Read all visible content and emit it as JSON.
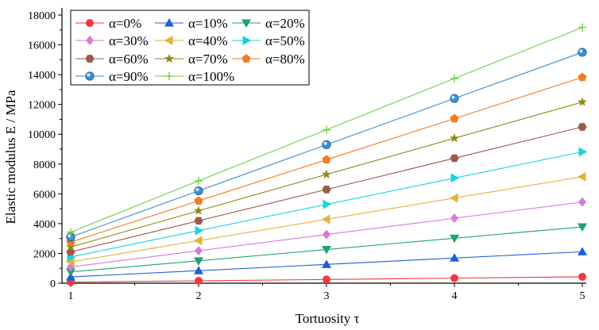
{
  "chart_data": {
    "type": "line",
    "title": "",
    "xlabel": "Tortuosity  τ",
    "ylabel": "Elastic modulus  E / MPa",
    "x": [
      1,
      2,
      3,
      4,
      5
    ],
    "xticks": [
      "1",
      "2",
      "3",
      "4",
      "5"
    ],
    "ylim": [
      0,
      18000
    ],
    "yticks": [
      "0",
      "2000",
      "4000",
      "6000",
      "8000",
      "10000",
      "12000",
      "14000",
      "16000",
      "18000"
    ],
    "grid": false,
    "legend_position": "top-left",
    "series": [
      {
        "name": "α=0%",
        "color": "#f2383c",
        "marker": "circle",
        "values": [
          80,
          160,
          250,
          340,
          430
        ]
      },
      {
        "name": "α=10%",
        "color": "#1f5fd6",
        "marker": "triangle-up",
        "values": [
          420,
          840,
          1260,
          1690,
          2110
        ]
      },
      {
        "name": "α=20%",
        "color": "#1fa36b",
        "marker": "triangle-down",
        "values": [
          760,
          1500,
          2260,
          3020,
          3780
        ]
      },
      {
        "name": "α=30%",
        "color": "#d57ad8",
        "marker": "diamond",
        "values": [
          1090,
          2180,
          3270,
          4360,
          5450
        ]
      },
      {
        "name": "α=40%",
        "color": "#e3b23a",
        "marker": "triangle-left",
        "values": [
          1430,
          2860,
          4290,
          5720,
          7150
        ]
      },
      {
        "name": "α=50%",
        "color": "#16d3e1",
        "marker": "triangle-right",
        "values": [
          1760,
          3530,
          5290,
          7060,
          8820
        ]
      },
      {
        "name": "α=60%",
        "color": "#9a5a4c",
        "marker": "hexagon",
        "values": [
          2100,
          4190,
          6290,
          8390,
          10490
        ]
      },
      {
        "name": "α=70%",
        "color": "#8f8a14",
        "marker": "star",
        "values": [
          2430,
          4860,
          7300,
          9730,
          12160
        ]
      },
      {
        "name": "α=80%",
        "color": "#f47a22",
        "marker": "pentagon",
        "values": [
          2760,
          5530,
          8290,
          11050,
          13820
        ]
      },
      {
        "name": "α=90%",
        "color": "#3d8fd0",
        "marker": "sphere",
        "values": [
          3100,
          6200,
          9300,
          12400,
          15500
        ]
      },
      {
        "name": "α=100%",
        "color": "#6fcf3d",
        "marker": "plus",
        "values": [
          3430,
          6870,
          10300,
          13740,
          17170
        ]
      }
    ]
  }
}
